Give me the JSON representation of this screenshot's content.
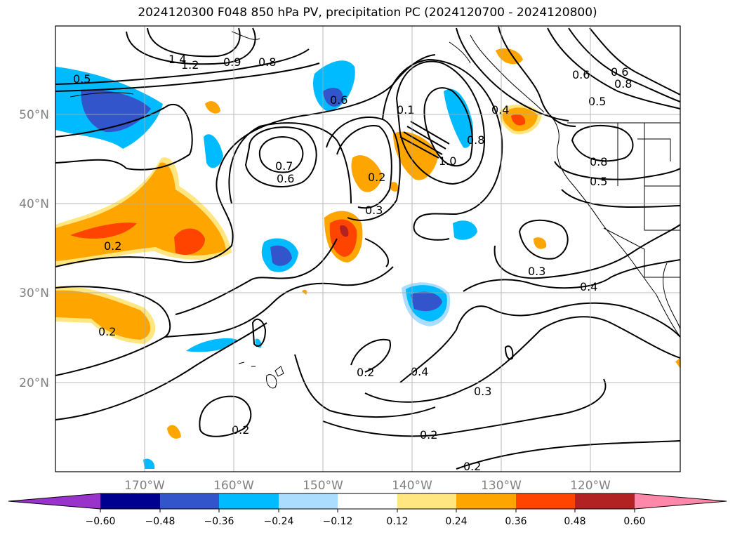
{
  "title": "2024120300 F048 850 hPa PV, precipitation PC (2024120700 - 2024120800)",
  "axes": {
    "lon_labels": [
      "170°W",
      "160°W",
      "150°W",
      "140°W",
      "130°W",
      "120°W"
    ],
    "lat_labels": [
      "50°N",
      "40°N",
      "30°N",
      "20°N"
    ]
  },
  "contour_labels": [
    "0.5",
    "1.4",
    "1.2",
    "0.9",
    "0.8",
    "0.6",
    "0.7",
    "0.6",
    "0.2",
    "0.3",
    "0.1",
    "1.0",
    "0.4",
    "0.8",
    "0.6",
    "0.5",
    "0.8",
    "0.5",
    "0.3",
    "0.4",
    "0.2",
    "0.4",
    "0.3",
    "0.2",
    "0.2",
    "0.2",
    "0.2",
    "0.2",
    "0.6",
    "0.8"
  ],
  "colorbar": {
    "ticks": [
      "−0.60",
      "−0.48",
      "−0.36",
      "−0.24",
      "−0.12",
      "0.12",
      "0.24",
      "0.36",
      "0.48",
      "0.60"
    ],
    "colors": [
      "#9933cc",
      "#000090",
      "#3355cc",
      "#00bbff",
      "#aaddff",
      "#ffffff",
      "#ffe680",
      "#ffa500",
      "#ff4400",
      "#b22222",
      "#ff88aa"
    ]
  },
  "palette": {
    "neg_light": "#aaddff",
    "neg_mid": "#00bbff",
    "neg_dark": "#3355cc",
    "pos_light": "#ffe680",
    "pos_mid": "#ffa500",
    "pos_dark": "#ff4400",
    "pos_darker": "#b22222"
  }
}
